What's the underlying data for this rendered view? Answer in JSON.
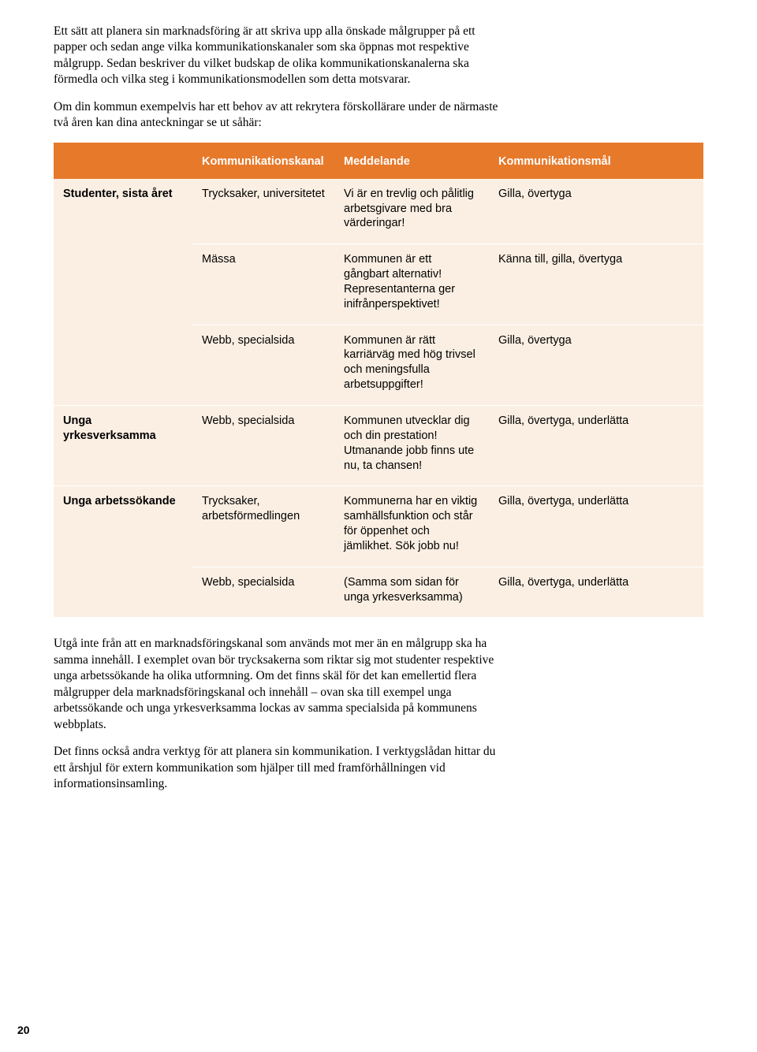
{
  "intro": {
    "p1": "Ett sätt att planera sin marknadsföring är att skriva upp alla önskade målgrupper på ett papper och sedan ange vilka kommunikationskanaler som ska öppnas mot respektive målgrupp. Sedan beskriver du vilket budskap de olika kommunikationskanalerna ska förmedla och vilka steg i kommunikationsmodellen som detta motsvarar.",
    "p2": "Om din kommun exempelvis har ett behov av att rekrytera förskollärare under de närmaste två åren kan dina anteckningar se ut såhär:"
  },
  "table": {
    "header_bg": "#e7792b",
    "header_fg": "#ffffff",
    "body_bg": "#fbefe3",
    "headers": [
      "Kommunikationskanal",
      "Meddelande",
      "Kommunikationsmål"
    ],
    "rows": [
      {
        "group": "Studenter, sista året",
        "rowspan": 3,
        "channel": "Trycksaker, universitetet",
        "message": "Vi är en trevlig och pålitlig arbetsgivare med bra värderingar!",
        "goal": "Gilla, övertyga"
      },
      {
        "channel": "Mässa",
        "message": "Kommunen är ett gångbart alternativ! Representanterna ger inifrånperspektivet!",
        "goal": "Känna till, gilla, övertyga"
      },
      {
        "channel": "Webb, specialsida",
        "message": "Kommunen är rätt karriärväg med hög trivsel och meningsfulla arbetsuppgifter!",
        "goal": "Gilla, övertyga"
      },
      {
        "group": "Unga yrkesverksamma",
        "rowspan": 1,
        "channel": "Webb, specialsida",
        "message": "Kommunen utvecklar dig och din prestation! Utmanande jobb finns ute nu, ta chansen!",
        "goal": "Gilla, övertyga, underlätta"
      },
      {
        "group": "Unga arbetssökande",
        "rowspan": 2,
        "channel": "Trycksaker, arbetsförmedlingen",
        "message": "Kommunerna har en viktig samhällsfunktion och står för öppenhet och jämlikhet. Sök jobb nu!",
        "goal": "Gilla, övertyga, underlätta"
      },
      {
        "channel": "Webb, specialsida",
        "message": "(Samma som sidan för unga yrkesverksamma)",
        "goal": "Gilla, övertyga, underlätta"
      }
    ]
  },
  "after": {
    "p1": "Utgå inte från att en marknadsföringskanal som används mot mer än en målgrupp ska ha samma innehåll. I exemplet ovan bör trycksakerna som riktar sig mot studenter respektive unga arbetssökande ha olika utformning. Om det finns skäl för det kan emellertid flera målgrupper dela marknadsföringskanal och innehåll – ovan ska till exempel unga arbetssökande och unga yrkesverksamma lockas av samma specialsida på kommunens webbplats.",
    "p2": "Det finns också andra verktyg för att planera sin kommunikation. I verktygslådan hittar du ett årshjul för extern kommunikation som hjälper till med framförhållningen vid informationsinsamling."
  },
  "page_number": "20"
}
